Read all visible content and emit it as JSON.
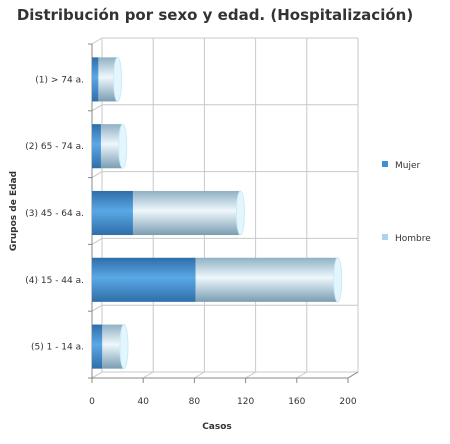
{
  "chart_data": {
    "type": "bar",
    "orientation": "horizontal",
    "stacked": true,
    "three_d": true,
    "title": "Distribución por sexo y edad. (Hospitalización)",
    "xlabel": "Casos",
    "ylabel": "Grupos de Edad",
    "categories": [
      "(1) > 74 a.",
      "(2) 65 - 74 a.",
      "(3) 45 - 64 a.",
      "(4) 15 - 44 a.",
      "(5) 1 - 14 a."
    ],
    "series": [
      {
        "name": "Mujer",
        "values": [
          5,
          7,
          32,
          81,
          8
        ],
        "color": "#3f8fd2"
      },
      {
        "name": "Hombre",
        "values": [
          15,
          17,
          84,
          111,
          17
        ],
        "color": "#a8d4ee"
      }
    ],
    "xlim": [
      0,
      200
    ],
    "xticks": [
      "0",
      "40",
      "80",
      "120",
      "160",
      "200"
    ],
    "grid": true,
    "legend_position": "right"
  }
}
